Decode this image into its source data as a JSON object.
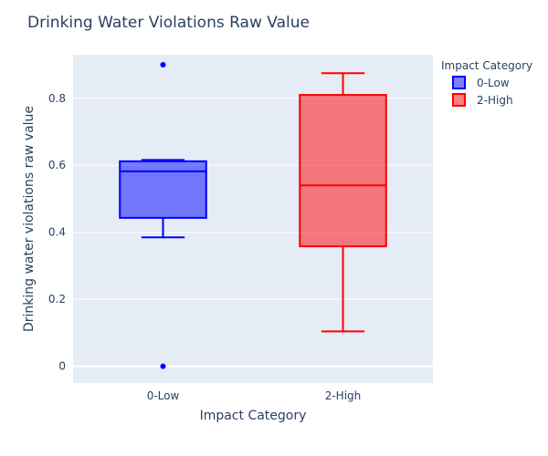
{
  "chart_data": {
    "type": "box",
    "title": "Drinking Water Violations Raw Value",
    "xlabel": "Impact Category",
    "ylabel": "Drinking water violations raw value",
    "categories": [
      "0-Low",
      "2-High"
    ],
    "ylim": [
      -0.05,
      0.93
    ],
    "yticks": [
      0,
      0.2,
      0.4,
      0.6,
      0.8
    ],
    "ytick_labels": [
      "0",
      "0.2",
      "0.4",
      "0.6",
      "0.8"
    ],
    "grid": true,
    "legend": {
      "title": "Impact Category",
      "position": "top-right",
      "entries": [
        "0-Low",
        "2-High"
      ]
    },
    "series": [
      {
        "name": "0-Low",
        "color": "#0000ff",
        "fill": "rgba(0,0,255,0.5)",
        "whisker_low": 0.385,
        "q1": 0.443,
        "median": 0.582,
        "q3": 0.612,
        "whisker_high": 0.616,
        "outliers": [
          0.9,
          0.0
        ]
      },
      {
        "name": "2-High",
        "color": "#ff0000",
        "fill": "rgba(255,0,0,0.5)",
        "whisker_low": 0.104,
        "q1": 0.358,
        "median": 0.54,
        "q3": 0.81,
        "whisker_high": 0.875,
        "outliers": []
      }
    ]
  }
}
